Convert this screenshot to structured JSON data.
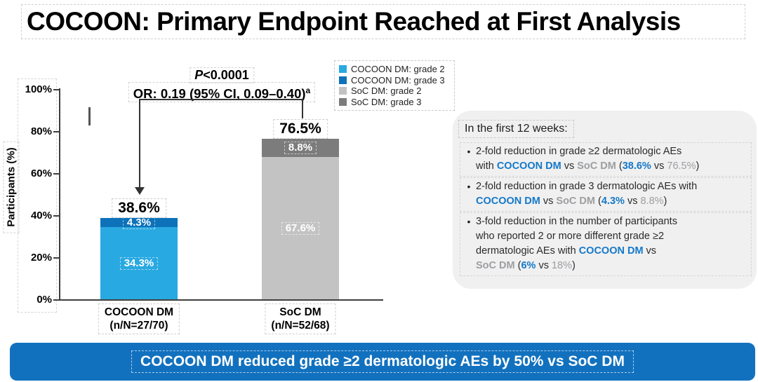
{
  "slide": {
    "title": "COCOON: Primary Endpoint Reached at First Analysis"
  },
  "colors": {
    "cocoon_grade2": "#29a9e1",
    "cocoon_grade3": "#0d72b9",
    "soc_grade2": "#c3c3c3",
    "soc_grade3": "#7c7c7c",
    "banner_blue": "#1271be",
    "bullet_blue_text": "#1478c8",
    "bullet_gray_text": "#9c9ea0"
  },
  "chart_data": {
    "type": "bar",
    "stacked": true,
    "ylabel": "Participants (%)",
    "ylim": [
      0,
      100
    ],
    "ytick_labels": [
      "100%",
      "80%",
      "60%",
      "40%",
      "20%",
      "0%"
    ],
    "grid": false,
    "legend_position": "top-right",
    "categories": [
      "COCOON DM",
      "SoC DM"
    ],
    "category_sublabels": [
      "(n/N=27/70)",
      "(n/N=52/68)"
    ],
    "series": [
      {
        "name": "COCOON DM: grade 2",
        "color": "#29a9e1",
        "values": [
          34.3,
          0
        ]
      },
      {
        "name": "COCOON DM: grade 3",
        "color": "#0d72b9",
        "values": [
          4.3,
          0
        ]
      },
      {
        "name": "SoC DM: grade 2",
        "color": "#c3c3c3",
        "values": [
          0,
          67.6
        ]
      },
      {
        "name": "SoC DM: grade 3",
        "color": "#7c7c7c",
        "values": [
          0,
          8.8
        ]
      }
    ],
    "totals": [
      38.6,
      76.5
    ],
    "total_labels": [
      "38.6%",
      "76.5%"
    ],
    "annotations": {
      "p_prefix": "P",
      "p_value": "<0.0001",
      "or_text": "OR: 0.19 (95% CI, 0.09–0.40)",
      "or_superscript": "a"
    }
  },
  "legend": {
    "items": [
      {
        "label": "COCOON DM: grade 2",
        "color": "#29a9e1"
      },
      {
        "label": "COCOON DM: grade 3",
        "color": "#0d72b9"
      },
      {
        "label": "SoC DM: grade 2",
        "color": "#c3c3c3"
      },
      {
        "label": "SoC DM: grade 3",
        "color": "#7c7c7c"
      }
    ]
  },
  "info_box": {
    "heading": "In the first 12 weeks:",
    "bullet_marker": "•",
    "bullets": [
      {
        "segments": [
          {
            "t": "2-fold reduction in grade ≥2 dermatologic AEs",
            "s": "plain"
          },
          {
            "s": "br"
          },
          {
            "t": "with ",
            "s": "plain"
          },
          {
            "t": "COCOON DM",
            "s": "blue"
          },
          {
            "t": " vs ",
            "s": "plain"
          },
          {
            "t": "SoC DM",
            "s": "grayb"
          },
          {
            "t": " (",
            "s": "plain"
          },
          {
            "t": "38.6%",
            "s": "blue"
          },
          {
            "t": " vs ",
            "s": "plain"
          },
          {
            "t": "76.5%",
            "s": "gray"
          },
          {
            "t": ")",
            "s": "plain"
          }
        ]
      },
      {
        "segments": [
          {
            "t": "2-fold reduction in grade 3 dermatologic AEs with",
            "s": "plain"
          },
          {
            "s": "br"
          },
          {
            "t": "COCOON DM",
            "s": "blue"
          },
          {
            "t": " vs ",
            "s": "plain"
          },
          {
            "t": "SoC DM",
            "s": "grayb"
          },
          {
            "t": " (",
            "s": "plain"
          },
          {
            "t": "4.3%",
            "s": "blue"
          },
          {
            "t": " vs ",
            "s": "plain"
          },
          {
            "t": "8.8%",
            "s": "gray"
          },
          {
            "t": ")",
            "s": "plain"
          }
        ]
      },
      {
        "segments": [
          {
            "t": "3-fold reduction in the number of participants",
            "s": "plain"
          },
          {
            "s": "br"
          },
          {
            "t": "who reported 2 or more different grade ≥2",
            "s": "plain"
          },
          {
            "s": "br"
          },
          {
            "t": "dermatologic AEs with ",
            "s": "plain"
          },
          {
            "t": "COCOON DM",
            "s": "blue"
          },
          {
            "t": " vs",
            "s": "plain"
          },
          {
            "s": "br"
          },
          {
            "t": "SoC DM",
            "s": "grayb"
          },
          {
            "t": " (",
            "s": "plain"
          },
          {
            "t": "6%",
            "s": "blue"
          },
          {
            "t": " vs ",
            "s": "plain"
          },
          {
            "t": "18%",
            "s": "gray"
          },
          {
            "t": ")",
            "s": "plain"
          }
        ]
      }
    ]
  },
  "banner": {
    "text": "COCOON DM reduced grade ≥2 dermatologic AEs by 50% vs SoC DM"
  }
}
